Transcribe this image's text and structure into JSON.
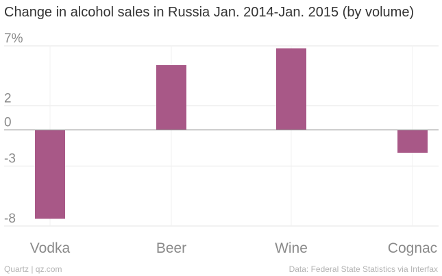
{
  "title": "Change in alcohol sales in Russia Jan. 2014-Jan. 2015 (by volume)",
  "credit": "Quartz | qz.com",
  "source": "Data: Federal State Statistics via Interfax",
  "colors": {
    "bar": "#a85887",
    "grid": "#e6e6e6",
    "zero_line": "#999999",
    "text": "#8a8a8a"
  },
  "chart_data": {
    "type": "bar",
    "title": "Change in alcohol sales in Russia Jan. 2014-Jan. 2015 (by volume)",
    "categories": [
      "Vodka",
      "Beer",
      "Wine",
      "Cognac"
    ],
    "values": [
      -7.4,
      5.4,
      6.8,
      -1.9
    ],
    "unit": "%",
    "ylim": [
      -8,
      7
    ],
    "yticks": [
      7,
      2,
      0,
      -3,
      -8
    ],
    "ytick_labels": [
      "7%",
      "2",
      "0",
      "-3",
      "-8"
    ],
    "xlabel": "",
    "ylabel": "",
    "grid": true
  }
}
